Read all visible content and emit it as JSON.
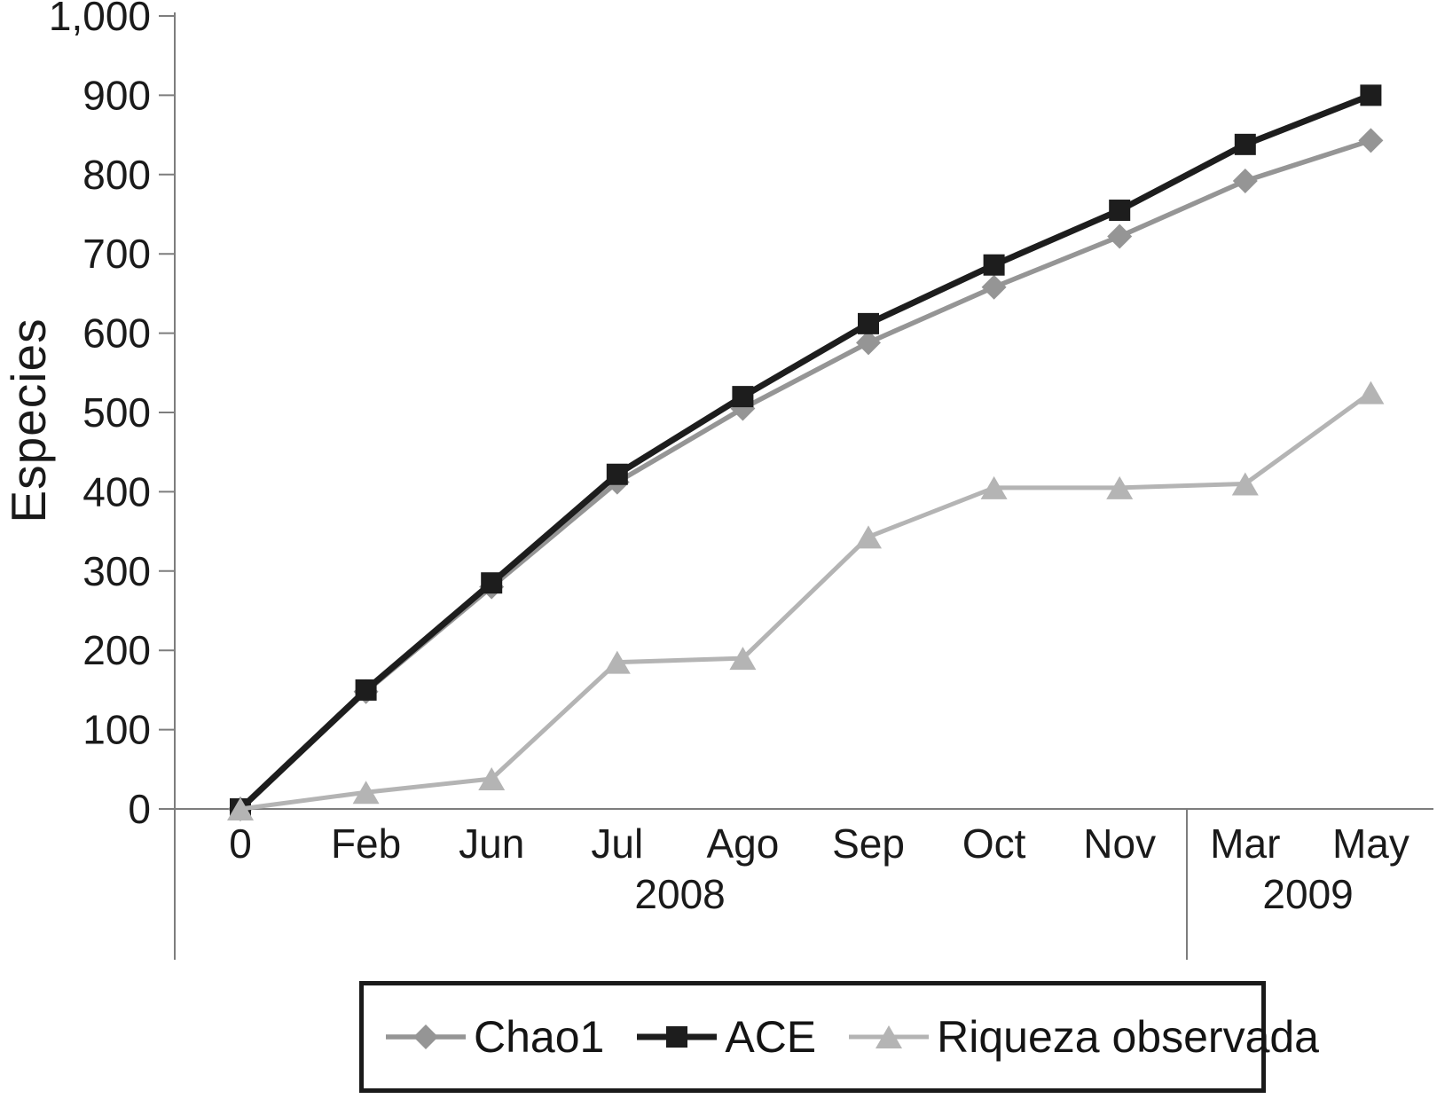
{
  "chart_data": {
    "type": "line",
    "title": "",
    "xlabel": "",
    "ylabel": "Especies",
    "ylim": [
      0,
      1000
    ],
    "ytick_step": 100,
    "ytick_labels": [
      "0",
      "100",
      "200",
      "300",
      "400",
      "500",
      "600",
      "700",
      "800",
      "900",
      "1,000"
    ],
    "categories": [
      "0",
      "Feb",
      "Jun",
      "Jul",
      "Ago",
      "Sep",
      "Oct",
      "Nov",
      "Mar",
      "May"
    ],
    "year_groups": [
      {
        "label": "2008",
        "from": 0,
        "to": 7
      },
      {
        "label": "2009",
        "from": 8,
        "to": 9
      }
    ],
    "grid": false,
    "legend_position": "bottom",
    "axis_color": "#7d7d7d",
    "series": [
      {
        "name": "Chao1",
        "marker": "diamond",
        "color": "#959595",
        "values": [
          0,
          148,
          280,
          412,
          505,
          588,
          658,
          722,
          792,
          843
        ]
      },
      {
        "name": "ACE",
        "marker": "square",
        "color": "#1d1d1d",
        "values": [
          0,
          150,
          285,
          422,
          520,
          612,
          686,
          755,
          838,
          900
        ]
      },
      {
        "name": "Riqueza observada",
        "marker": "triangle",
        "color": "#b4b4b4",
        "values": [
          0,
          21,
          38,
          185,
          190,
          343,
          405,
          405,
          410,
          525
        ]
      }
    ]
  }
}
